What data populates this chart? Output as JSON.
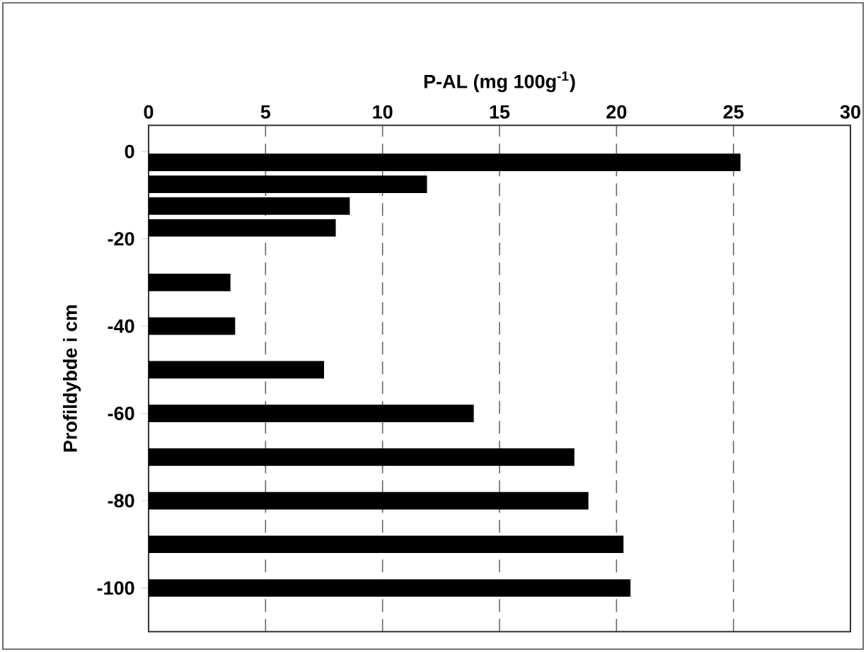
{
  "chart_data": {
    "type": "bar",
    "orientation": "horizontal",
    "xlabel": "P-AL (mg 100g$^{-1}$)",
    "ylabel": "Profildybde i cm",
    "x": [
      -2.5,
      -7.5,
      -12.5,
      -17.5,
      -30,
      -40,
      -50,
      -60,
      -70,
      -80,
      -90,
      -100
    ],
    "values": [
      25.3,
      11.9,
      8.6,
      8.0,
      3.5,
      3.7,
      7.5,
      13.9,
      18.2,
      18.8,
      20.3,
      20.6
    ],
    "color": "#000000",
    "xlim": [
      0,
      30
    ],
    "xticks": [
      0,
      5,
      10,
      15,
      20,
      25,
      30
    ],
    "ylim": [
      -110,
      6
    ],
    "yticks": [
      -100,
      -80,
      -60,
      -40,
      -20,
      0
    ],
    "grid": "x"
  }
}
